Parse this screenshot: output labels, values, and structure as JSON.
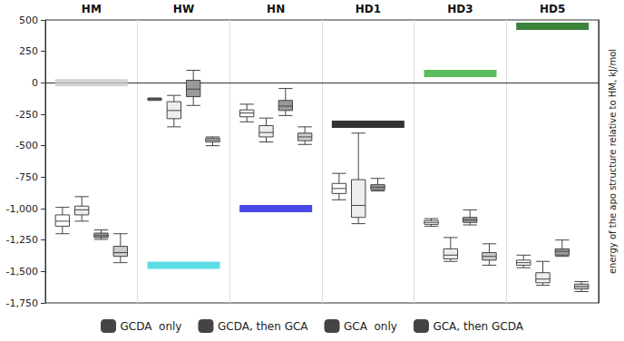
{
  "chart_data": {
    "type": "boxplot",
    "categories": [
      "HM",
      "HW",
      "HN",
      "HD1",
      "HD3",
      "HD5"
    ],
    "ylim": [
      -1750,
      500
    ],
    "yticks": [
      -1750,
      -1500,
      -1250,
      -1000,
      -750,
      -500,
      -250,
      0,
      250,
      500
    ],
    "y2label": "energy of the apo structure relative to HM, kJ/mol",
    "grid": false,
    "legend": "bottom",
    "series": [
      {
        "name": "GCDA  only",
        "type": "boxplot",
        "color": "#ffffff",
        "values": [
          [
            -1200,
            -1140,
            -1100,
            -1050,
            -990
          ],
          [
            -140,
            -135,
            -130,
            -125,
            -120
          ],
          [
            -310,
            -270,
            -240,
            -215,
            -170
          ],
          [
            -930,
            -880,
            -840,
            -800,
            -720
          ],
          [
            -1140,
            -1125,
            -1110,
            -1095,
            -1080
          ],
          [
            -1470,
            -1450,
            -1430,
            -1410,
            -1370
          ]
        ]
      },
      {
        "name": "GCDA, then GCA",
        "type": "boxplot",
        "color": "#eeeeee",
        "values": [
          [
            -1100,
            -1050,
            -1010,
            -980,
            -905
          ],
          [
            -350,
            -285,
            -220,
            -150,
            -100
          ],
          [
            -470,
            -430,
            -395,
            -340,
            -280
          ],
          [
            -1120,
            -1070,
            -975,
            -770,
            -400
          ],
          [
            -1420,
            -1400,
            -1370,
            -1320,
            -1230
          ],
          [
            -1610,
            -1590,
            -1560,
            -1510,
            -1420
          ]
        ]
      },
      {
        "name": "GCA  only",
        "type": "boxplot",
        "color": "#9a9a9a",
        "values": [
          [
            -1245,
            -1230,
            -1215,
            -1195,
            -1170
          ],
          [
            -180,
            -110,
            -50,
            20,
            100
          ],
          [
            -260,
            -220,
            -185,
            -140,
            -45
          ],
          [
            -860,
            -850,
            -830,
            -810,
            -760
          ],
          [
            -1130,
            -1110,
            -1090,
            -1070,
            -1010
          ],
          [
            -1380,
            -1370,
            -1340,
            -1320,
            -1250
          ]
        ]
      },
      {
        "name": "GCA, then GCDA",
        "type": "boxplot",
        "color": "#cccccc",
        "values": [
          [
            -1430,
            -1380,
            -1350,
            -1300,
            -1200
          ],
          [
            -500,
            -470,
            -455,
            -440,
            -430
          ],
          [
            -490,
            -460,
            -430,
            -400,
            -350
          ],
          null,
          [
            -1450,
            -1410,
            -1380,
            -1350,
            -1280
          ],
          [
            -1660,
            -1640,
            -1620,
            -1600,
            -1580
          ]
        ]
      },
      {
        "type": "scatter",
        "marker": "rect",
        "axis": "y2",
        "values": [
          0,
          -1450,
          -1000,
          -330,
          75,
          450
        ],
        "colors": [
          "#c8c8c8",
          "#33d6e0",
          "#1a1ae0",
          "#000000",
          "#33aa33",
          "#0a640a"
        ]
      }
    ]
  }
}
